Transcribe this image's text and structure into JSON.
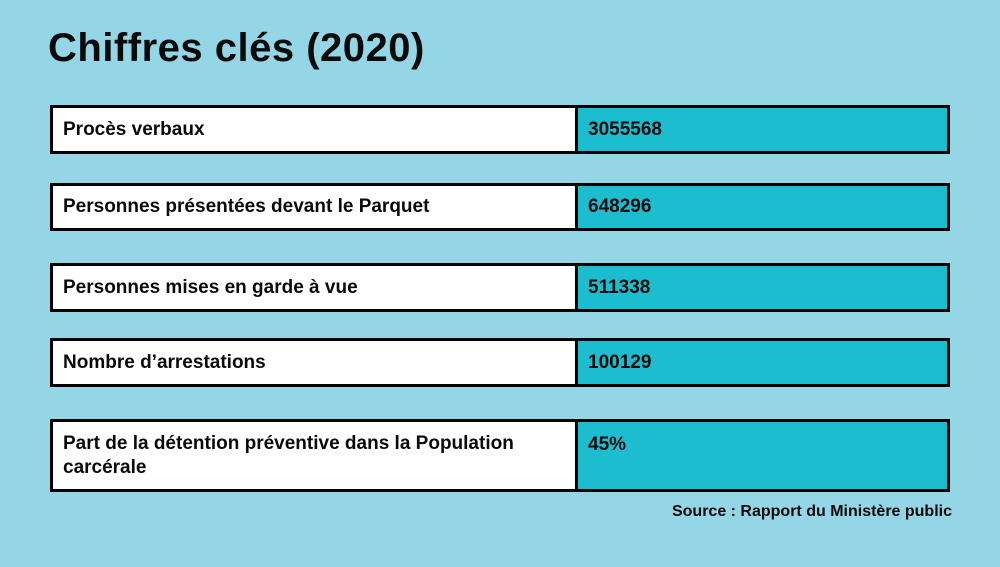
{
  "title": "Chiffres clés (2020)",
  "source": "Source : Rapport du Ministère public",
  "colors": {
    "background": "#95d6e6",
    "value_fill": "#1dbdd0",
    "label_fill": "#ffffff",
    "border": "#000000",
    "text": "#0a0a0a"
  },
  "rows": [
    {
      "label": "Procès verbaux",
      "value": "3055568"
    },
    {
      "label": "Personnes présentées devant le Parquet",
      "value": "648296"
    },
    {
      "label": "Personnes mises en garde à vue",
      "value": "511338"
    },
    {
      "label": "Nombre d’arrestations",
      "value": "100129"
    },
    {
      "label": "Part de la détention préventive dans la Population carcérale",
      "value": "45%"
    }
  ],
  "chart_data": {
    "type": "table",
    "title": "Chiffres clés (2020)",
    "categories": [
      "Procès verbaux",
      "Personnes présentées devant le Parquet",
      "Personnes mises en garde à vue",
      "Nombre d’arrestations",
      "Part de la détention préventive dans la Population carcérale"
    ],
    "values": [
      3055568,
      648296,
      511338,
      100129,
      "45%"
    ],
    "source": "Source : Rapport du Ministère public",
    "legend_position": "none",
    "grid": false
  }
}
